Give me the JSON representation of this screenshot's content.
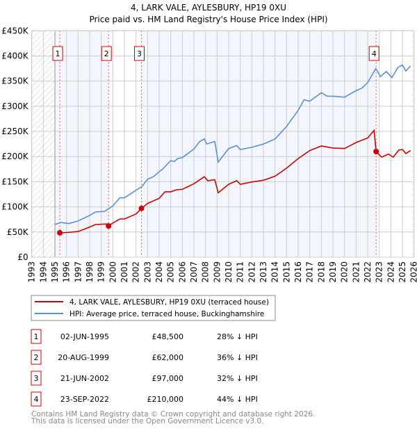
{
  "chart_data": {
    "type": "line",
    "title": "4, LARK VALE, AYLESBURY, HP19 0XU",
    "subtitle": "Price paid vs. HM Land Registry's House Price Index (HPI)",
    "xlim": [
      1993,
      2026
    ],
    "ylim": [
      0,
      450000
    ],
    "grid": true,
    "x_ticks": [
      "1993",
      "1994",
      "1995",
      "1996",
      "1997",
      "1998",
      "1999",
      "2000",
      "2001",
      "2002",
      "2003",
      "2004",
      "2005",
      "2006",
      "2007",
      "2008",
      "2009",
      "2010",
      "2011",
      "2012",
      "2013",
      "2014",
      "2015",
      "2016",
      "2017",
      "2018",
      "2019",
      "2020",
      "2021",
      "2022",
      "2023",
      "2024",
      "2025",
      "2026"
    ],
    "y_ticks": [
      {
        "value": 0,
        "label": "£0"
      },
      {
        "value": 50000,
        "label": "£50K"
      },
      {
        "value": 100000,
        "label": "£100K"
      },
      {
        "value": 150000,
        "label": "£150K"
      },
      {
        "value": 200000,
        "label": "£200K"
      },
      {
        "value": 250000,
        "label": "£250K"
      },
      {
        "value": 300000,
        "label": "£300K"
      },
      {
        "value": 350000,
        "label": "£350K"
      },
      {
        "value": 400000,
        "label": "£400K"
      },
      {
        "value": 450000,
        "label": "£450K"
      }
    ],
    "data_range": [
      1995,
      2025.8
    ],
    "series": [
      {
        "name": "4, LARK VALE, AYLESBURY, HP19 0XU (terraced house)",
        "color": "#cc0000",
        "x": [
          1995.42,
          1996,
          1997,
          1998,
          1998.5,
          1999.5,
          1999.63,
          2000,
          2000.6,
          2001,
          2002,
          2002.47,
          2003,
          2004,
          2004.5,
          2005,
          2005.5,
          2006,
          2007,
          2007.9,
          2008.2,
          2008.8,
          2009.1,
          2010,
          2010.7,
          2011,
          2012,
          2013,
          2014,
          2015,
          2016,
          2017,
          2018,
          2019,
          2020,
          2021,
          2022,
          2022.55,
          2022.73,
          2023.2,
          2023.8,
          2024.2,
          2024.7,
          2025,
          2025.3,
          2025.7
        ],
        "y": [
          48500,
          49000,
          51000,
          60000,
          65000,
          66000,
          62000,
          68000,
          76000,
          76000,
          86000,
          97000,
          107000,
          117000,
          130000,
          130000,
          134000,
          135000,
          146000,
          160000,
          152000,
          154000,
          128000,
          145000,
          152000,
          145000,
          149500,
          153000,
          161000,
          177000,
          196000,
          212000,
          221000,
          217000,
          216000,
          228000,
          237000,
          252000,
          210000,
          199000,
          205000,
          199000,
          213000,
          214000,
          206000,
          212000
        ]
      },
      {
        "name": "HPI: Average price, terraced house, Buckinghamshire",
        "color": "#5b8fd4",
        "x": [
          1995,
          1995.5,
          1996.2,
          1997,
          1998,
          1998.5,
          1999.3,
          2000,
          2000.6,
          2001,
          2002,
          2002.5,
          2003,
          2003.5,
          2004,
          2004.3,
          2005,
          2005.3,
          2005.6,
          2006,
          2007,
          2007.5,
          2007.9,
          2008.1,
          2008.8,
          2009.1,
          2010,
          2010.7,
          2011,
          2012,
          2013,
          2014,
          2015,
          2016,
          2016.5,
          2017,
          2018,
          2018.5,
          2019,
          2020,
          2021,
          2021.5,
          2022,
          2022.7,
          2023.1,
          2023.6,
          2024.1,
          2024.6,
          2025,
          2025.3,
          2025.7
        ],
        "y": [
          65000,
          69000,
          67000,
          72000,
          83000,
          90000,
          91000,
          102000,
          118000,
          118000,
          133000,
          140000,
          155000,
          160000,
          170000,
          175000,
          192000,
          190000,
          196000,
          198000,
          215000,
          230000,
          235000,
          225000,
          230000,
          189000,
          216000,
          222000,
          214000,
          218500,
          225000,
          235000,
          260000,
          292000,
          313000,
          310000,
          327000,
          320000,
          320000,
          318000,
          331000,
          336000,
          347000,
          375000,
          359000,
          369000,
          357000,
          377000,
          382000,
          370000,
          380000
        ]
      }
    ],
    "sales": [
      {
        "label": "1",
        "x": 1995.42,
        "price": 48500,
        "date": "02-JUN-1995",
        "price_text": "£48,500",
        "hpi_text": "28% ↓ HPI"
      },
      {
        "label": "2",
        "x": 1999.63,
        "price": 62000,
        "date": "20-AUG-1999",
        "price_text": "£62,000",
        "hpi_text": "36% ↓ HPI"
      },
      {
        "label": "3",
        "x": 2002.47,
        "price": 97000,
        "date": "21-JUN-2002",
        "price_text": "£97,000",
        "hpi_text": "32% ↓ HPI"
      },
      {
        "label": "4",
        "x": 2022.73,
        "price": 210000,
        "date": "23-SEP-2022",
        "price_text": "£210,000",
        "hpi_text": "44% ↓ HPI"
      }
    ],
    "legend_placement": "below"
  },
  "footer": {
    "line1": "Contains HM Land Registry data © Crown copyright and database right 2026.",
    "line2": "This data is licensed under the Open Government Licence v3.0."
  }
}
